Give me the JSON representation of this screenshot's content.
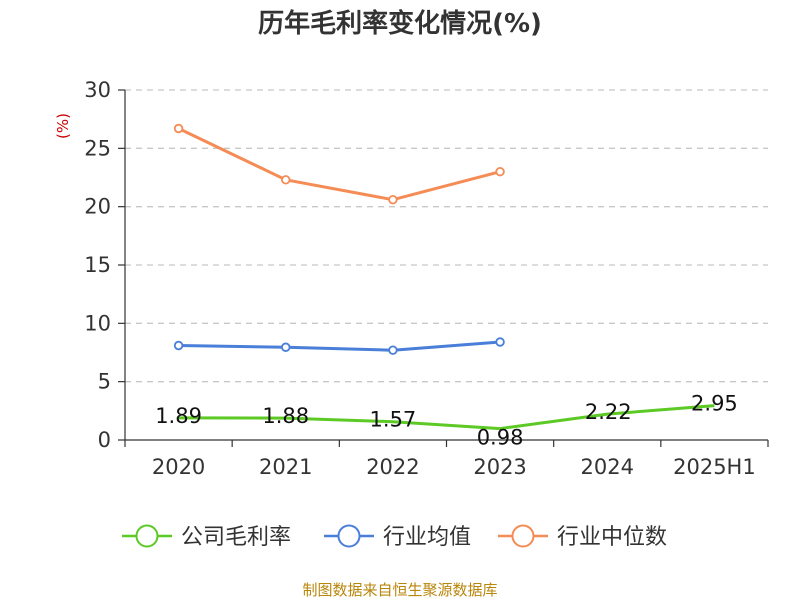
{
  "source_text": "制图数据来自恒生聚源数据库",
  "chart_data": {
    "type": "line",
    "title": "历年毛利率变化情况(%)",
    "ylabel": "(%)",
    "xlabel": "",
    "categories": [
      "2020",
      "2021",
      "2022",
      "2023",
      "2024",
      "2025H1"
    ],
    "ylim": [
      0,
      30
    ],
    "yticks": [
      0,
      5,
      10,
      15,
      20,
      25,
      30
    ],
    "grid": true,
    "legend_position": "bottom",
    "series": [
      {
        "name": "公司毛利率",
        "color": "#5cc925",
        "values": [
          1.89,
          1.88,
          1.57,
          0.98,
          2.22,
          2.95
        ],
        "labels": [
          "1.89",
          "1.88",
          "1.57",
          "0.98",
          "2.22",
          "2.95"
        ],
        "markers": false
      },
      {
        "name": "行业均值",
        "color": "#4a7fd9",
        "values": [
          8.1,
          7.95,
          7.7,
          8.4,
          null,
          null
        ],
        "markers": true
      },
      {
        "name": "行业中位数",
        "color": "#f58b55",
        "values": [
          26.7,
          22.3,
          20.6,
          23.0,
          null,
          null
        ],
        "markers": true
      }
    ]
  }
}
